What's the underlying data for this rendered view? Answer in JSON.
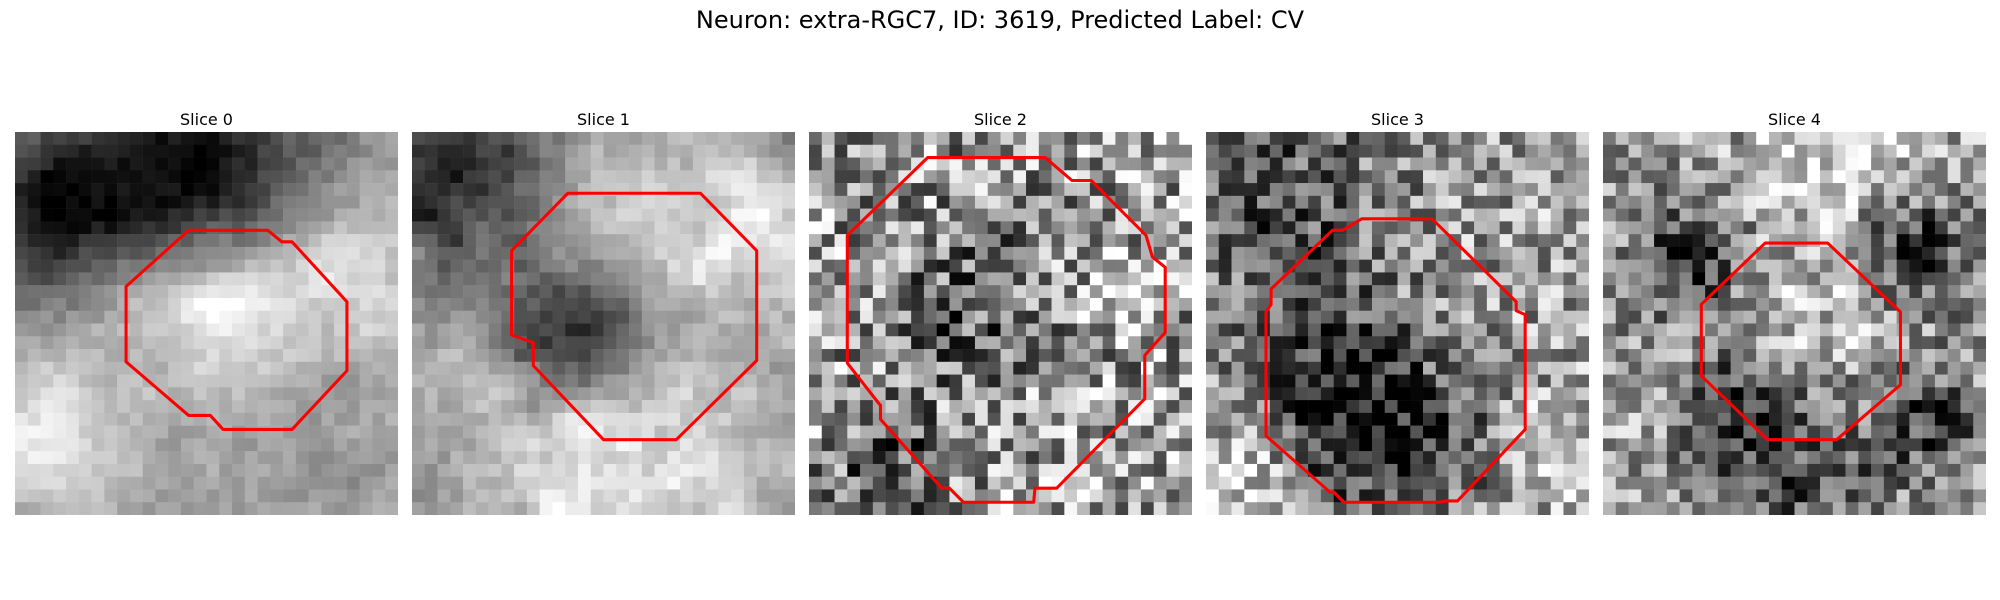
{
  "figure": {
    "title": "Neuron: extra-RGC7, ID: 3619, Predicted Label: CV"
  },
  "outline_color": "#ff0000",
  "panels": [
    {
      "title": "Slice 0"
    },
    {
      "title": "Slice 1"
    },
    {
      "title": "Slice 2"
    },
    {
      "title": "Slice 3"
    },
    {
      "title": "Slice 4"
    }
  ]
}
